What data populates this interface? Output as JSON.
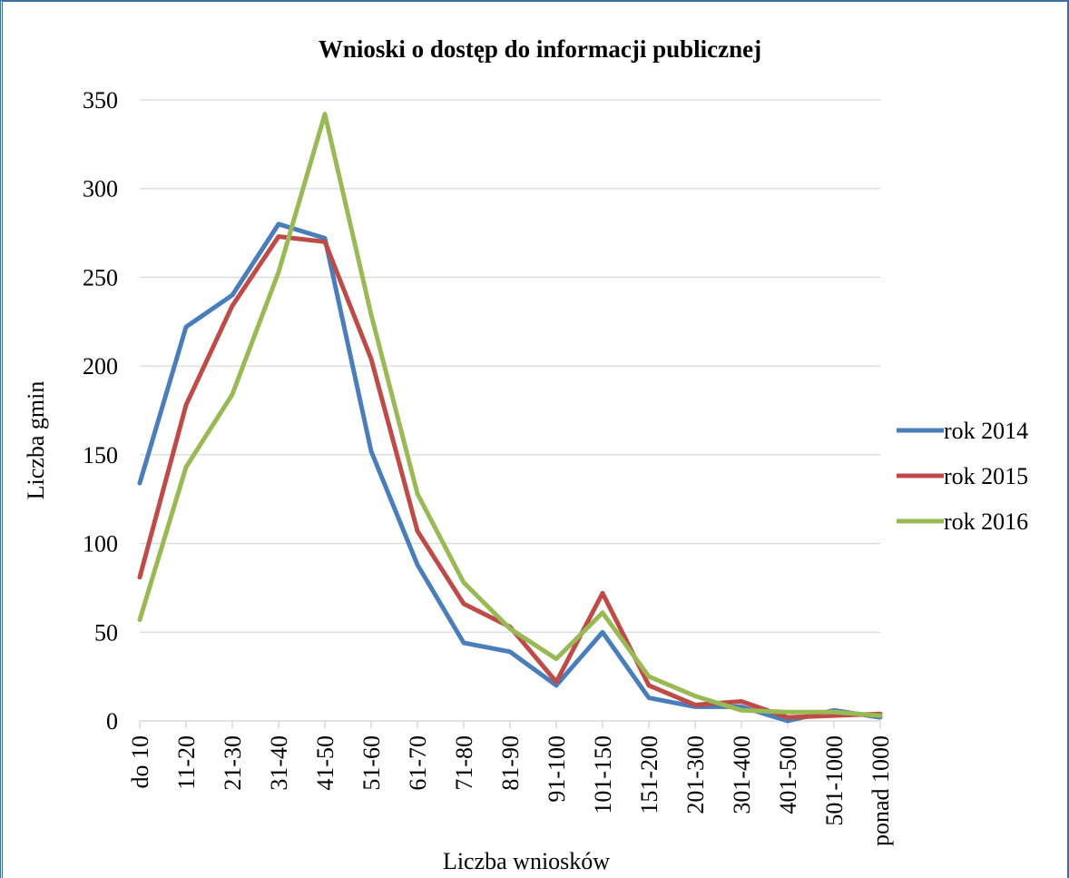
{
  "chart_data": {
    "type": "line",
    "title": "Wnioski o dostęp do informacji publicznej",
    "xlabel": "Liczba wniosków",
    "ylabel": "Liczba gmin",
    "ylim": [
      0,
      350
    ],
    "yticks": [
      0,
      50,
      100,
      150,
      200,
      250,
      300,
      350
    ],
    "grid": true,
    "legend_position": "right",
    "categories": [
      "do 10",
      "11-20",
      "21-30",
      "31-40",
      "41-50",
      "51-60",
      "61-70",
      "71-80",
      "81-90",
      "91-100",
      "101-150",
      "151-200",
      "201-300",
      "301-400",
      "401-500",
      "501-1000",
      "ponad 1000"
    ],
    "series": [
      {
        "name": "rok 2014",
        "color": "#4a7ebb",
        "values": [
          134,
          222,
          240,
          280,
          272,
          152,
          88,
          44,
          39,
          20,
          50,
          13,
          8,
          8,
          0,
          6,
          2
        ]
      },
      {
        "name": "rok 2015",
        "color": "#be4b48",
        "values": [
          81,
          178,
          234,
          273,
          270,
          204,
          107,
          66,
          53,
          22,
          72,
          20,
          9,
          11,
          2,
          3,
          4
        ]
      },
      {
        "name": "rok 2016",
        "color": "#98b954",
        "values": [
          57,
          143,
          184,
          253,
          342,
          229,
          128,
          78,
          52,
          35,
          61,
          25,
          14,
          6,
          5,
          5,
          3
        ]
      }
    ]
  }
}
